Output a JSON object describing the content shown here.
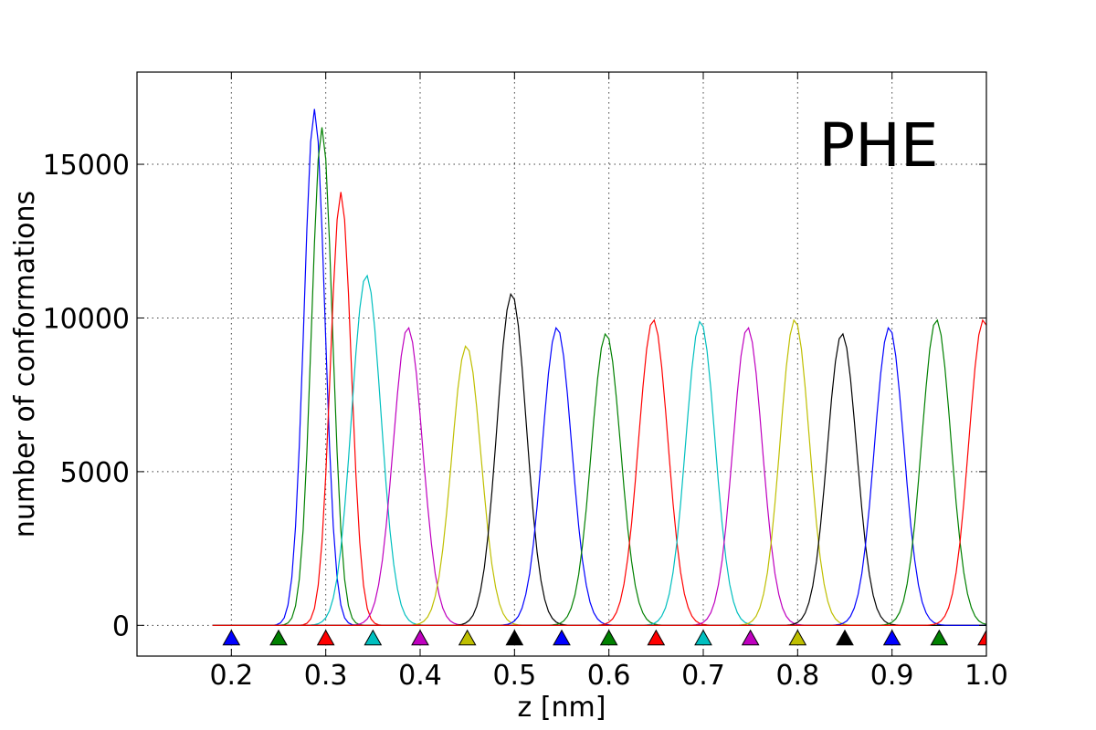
{
  "chart_data": {
    "type": "line",
    "annotation": "PHE",
    "xlabel": "z [nm]",
    "ylabel": "number of conformations",
    "xlim": [
      0.1,
      1.0
    ],
    "ylim": [
      -1000,
      18000
    ],
    "x_ticks": [
      0.2,
      0.3,
      0.4,
      0.5,
      0.6,
      0.7,
      0.8,
      0.9,
      1.0
    ],
    "x_tick_labels": [
      "0.2",
      "0.3",
      "0.4",
      "0.5",
      "0.6",
      "0.7",
      "0.8",
      "0.9",
      "1.0"
    ],
    "y_ticks": [
      0,
      5000,
      10000,
      15000
    ],
    "y_tick_labels": [
      "0",
      "5000",
      "10000",
      "15000"
    ],
    "grid": true,
    "series": [
      {
        "center": 0.288,
        "peak": 16800,
        "color": "#0000ff"
      },
      {
        "center": 0.296,
        "peak": 16200,
        "color": "#008000"
      },
      {
        "center": 0.316,
        "peak": 14100,
        "color": "#ff0000"
      },
      {
        "center": 0.343,
        "peak": 11400,
        "color": "#00bfbf"
      },
      {
        "center": 0.387,
        "peak": 9700,
        "color": "#bf00bf"
      },
      {
        "center": 0.449,
        "peak": 9100,
        "color": "#bfbf00"
      },
      {
        "center": 0.497,
        "peak": 10800,
        "color": "#000000"
      },
      {
        "center": 0.545,
        "peak": 9700,
        "color": "#0000ff"
      },
      {
        "center": 0.597,
        "peak": 9500,
        "color": "#008000"
      },
      {
        "center": 0.647,
        "peak": 9950,
        "color": "#ff0000"
      },
      {
        "center": 0.697,
        "peak": 9900,
        "color": "#00bfbf"
      },
      {
        "center": 0.747,
        "peak": 9700,
        "color": "#bf00bf"
      },
      {
        "center": 0.797,
        "peak": 9950,
        "color": "#bfbf00"
      },
      {
        "center": 0.847,
        "peak": 9500,
        "color": "#000000"
      },
      {
        "center": 0.897,
        "peak": 9700,
        "color": "#0000ff"
      },
      {
        "center": 0.947,
        "peak": 9950,
        "color": "#008000"
      },
      {
        "center": 0.997,
        "peak": 9950,
        "color": "#ff0000"
      }
    ],
    "markers": [
      {
        "x": 0.2,
        "y": -400,
        "color": "#0000ff"
      },
      {
        "x": 0.25,
        "y": -400,
        "color": "#008000"
      },
      {
        "x": 0.3,
        "y": -400,
        "color": "#ff0000"
      },
      {
        "x": 0.35,
        "y": -400,
        "color": "#00bfbf"
      },
      {
        "x": 0.4,
        "y": -400,
        "color": "#bf00bf"
      },
      {
        "x": 0.45,
        "y": -400,
        "color": "#bfbf00"
      },
      {
        "x": 0.5,
        "y": -400,
        "color": "#000000"
      },
      {
        "x": 0.55,
        "y": -400,
        "color": "#0000ff"
      },
      {
        "x": 0.6,
        "y": -400,
        "color": "#008000"
      },
      {
        "x": 0.65,
        "y": -400,
        "color": "#ff0000"
      },
      {
        "x": 0.7,
        "y": -400,
        "color": "#00bfbf"
      },
      {
        "x": 0.75,
        "y": -400,
        "color": "#bf00bf"
      },
      {
        "x": 0.8,
        "y": -400,
        "color": "#bfbf00"
      },
      {
        "x": 0.85,
        "y": -400,
        "color": "#000000"
      },
      {
        "x": 0.9,
        "y": -400,
        "color": "#0000ff"
      },
      {
        "x": 0.95,
        "y": -400,
        "color": "#008000"
      },
      {
        "x": 1.0,
        "y": -400,
        "color": "#ff0000"
      }
    ]
  }
}
